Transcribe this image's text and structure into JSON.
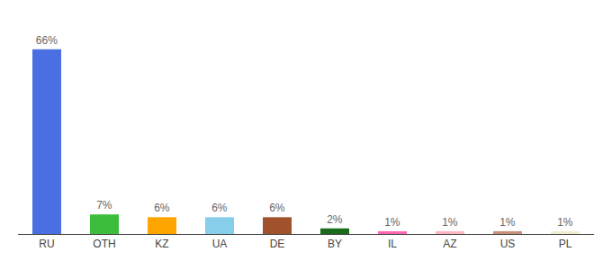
{
  "chart_data": {
    "type": "bar",
    "categories": [
      "RU",
      "OTH",
      "KZ",
      "UA",
      "DE",
      "BY",
      "IL",
      "AZ",
      "US",
      "PL"
    ],
    "values": [
      66,
      7,
      6,
      6,
      6,
      2,
      1,
      1,
      1,
      1
    ],
    "value_labels": [
      "66%",
      "7%",
      "6%",
      "6%",
      "6%",
      "2%",
      "1%",
      "1%",
      "1%",
      "1%"
    ],
    "data_labels": true,
    "colors": [
      "#4A6FE3",
      "#3DBD3D",
      "#FFA500",
      "#87CEEB",
      "#A0522D",
      "#1A6B1A",
      "#FF69B4",
      "#FFB6C1",
      "#C8907A",
      "#F0EDD0"
    ],
    "ylim": [
      0,
      74
    ],
    "grid": false,
    "tick_labels": "x"
  }
}
